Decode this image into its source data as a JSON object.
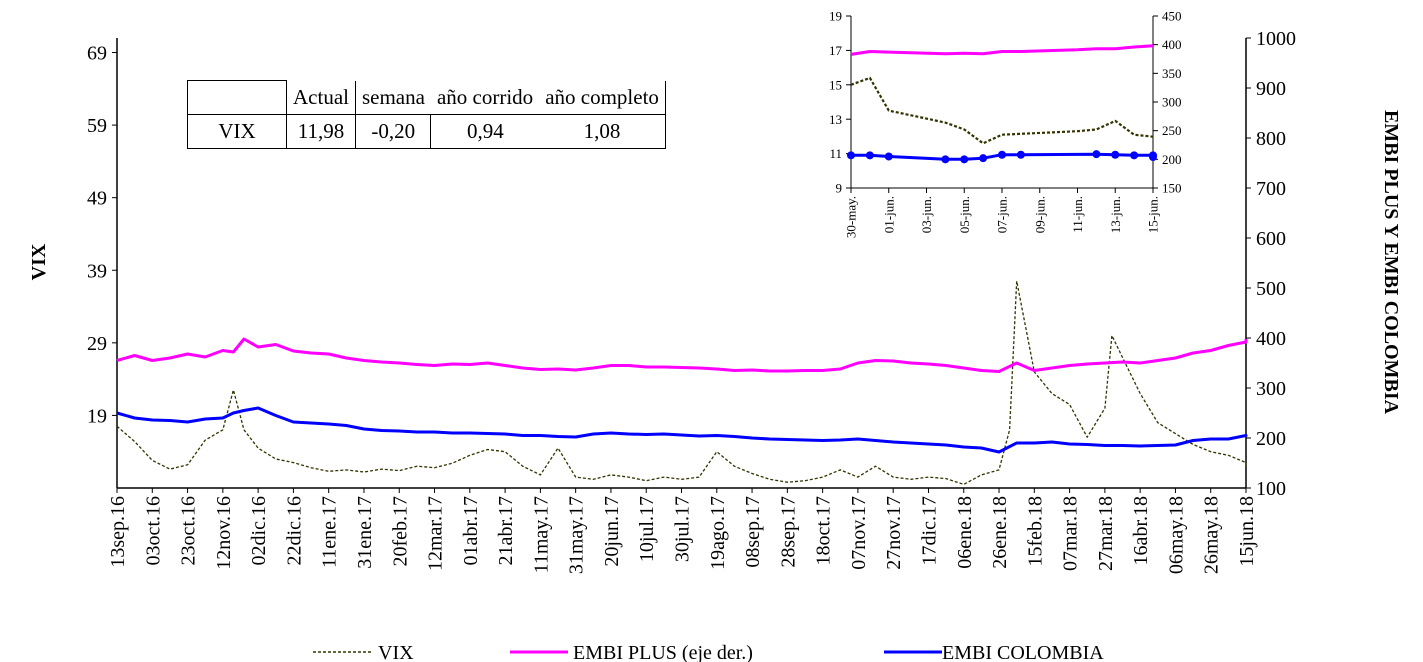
{
  "chart_data": [
    {
      "type": "line",
      "title": "",
      "ylabel_left": "VIX",
      "ylabel_right": "EMBI PLUS Y EMBI COLOMBIA",
      "y_left_ticks": [
        19,
        29,
        39,
        49,
        59,
        69
      ],
      "y_left_lim": [
        9,
        71
      ],
      "y_right_ticks": [
        100,
        200,
        300,
        400,
        500,
        600,
        700,
        800,
        900,
        1000
      ],
      "y_right_lim": [
        100,
        1000
      ],
      "x_tick_labels": [
        "13sep.16",
        "03oct.16",
        "23oct.16",
        "12nov.16",
        "02dic.16",
        "22dic.16",
        "11ene.17",
        "31ene.17",
        "20feb.17",
        "12mar.17",
        "01abr.17",
        "21abr.17",
        "11may.17",
        "31may.17",
        "20jun.17",
        "10jul.17",
        "30jul.17",
        "19ago.17",
        "08sep.17",
        "28sep.17",
        "18oct.17",
        "07nov.17",
        "27nov.17",
        "17dic.17",
        "06ene.18",
        "26ene.18",
        "15feb.18",
        "07mar.18",
        "27mar.18",
        "16abr.18",
        "06may.18",
        "26may.18",
        "15jun.18"
      ],
      "series": [
        {
          "name": "VIX",
          "axis": "left",
          "color": "#333300",
          "style": "dashed",
          "points": [
            [
              0,
              17.5
            ],
            [
              0.5,
              15.4
            ],
            [
              1,
              12.8
            ],
            [
              1.5,
              11.6
            ],
            [
              2,
              12.2
            ],
            [
              2.5,
              15.6
            ],
            [
              3,
              17.0
            ],
            [
              3.3,
              22.5
            ],
            [
              3.6,
              17.0
            ],
            [
              4,
              14.5
            ],
            [
              4.5,
              13.0
            ],
            [
              5,
              12.5
            ],
            [
              5.5,
              11.8
            ],
            [
              6,
              11.3
            ],
            [
              6.5,
              11.5
            ],
            [
              7,
              11.2
            ],
            [
              7.5,
              11.6
            ],
            [
              8,
              11.4
            ],
            [
              8.5,
              12.0
            ],
            [
              9,
              11.8
            ],
            [
              9.5,
              12.4
            ],
            [
              10,
              13.5
            ],
            [
              10.5,
              14.3
            ],
            [
              11,
              14.0
            ],
            [
              11.5,
              12.0
            ],
            [
              12,
              10.8
            ],
            [
              12.5,
              14.5
            ],
            [
              13,
              10.5
            ],
            [
              13.5,
              10.2
            ],
            [
              14,
              10.8
            ],
            [
              14.5,
              10.5
            ],
            [
              15,
              10.0
            ],
            [
              15.5,
              10.5
            ],
            [
              16,
              10.2
            ],
            [
              16.5,
              10.5
            ],
            [
              17,
              14.0
            ],
            [
              17.5,
              12.0
            ],
            [
              18,
              11.0
            ],
            [
              18.5,
              10.2
            ],
            [
              19,
              9.8
            ],
            [
              19.5,
              10.0
            ],
            [
              20,
              10.5
            ],
            [
              20.5,
              11.5
            ],
            [
              21,
              10.5
            ],
            [
              21.5,
              12.0
            ],
            [
              22,
              10.5
            ],
            [
              22.5,
              10.2
            ],
            [
              23,
              10.5
            ],
            [
              23.5,
              10.3
            ],
            [
              24,
              9.5
            ],
            [
              24.5,
              10.8
            ],
            [
              25,
              11.5
            ],
            [
              25.3,
              17.0
            ],
            [
              25.5,
              37.5
            ],
            [
              25.8,
              30.0
            ],
            [
              26,
              25.0
            ],
            [
              26.5,
              22.0
            ],
            [
              27,
              20.5
            ],
            [
              27.5,
              16.0
            ],
            [
              28,
              20.0
            ],
            [
              28.2,
              30.0
            ],
            [
              28.5,
              27.0
            ],
            [
              29,
              22.0
            ],
            [
              29.5,
              18.0
            ],
            [
              30,
              16.5
            ],
            [
              30.5,
              15.0
            ],
            [
              31,
              14.0
            ],
            [
              31.5,
              13.5
            ],
            [
              32,
              12.5
            ],
            [
              32.5,
              11.98
            ]
          ]
        },
        {
          "name": "EMBI PLUS (eje der.)",
          "axis": "right",
          "color": "#ff00ff",
          "style": "solid",
          "points": [
            [
              0,
              355
            ],
            [
              0.5,
              365
            ],
            [
              1,
              355
            ],
            [
              1.5,
              360
            ],
            [
              2,
              368
            ],
            [
              2.5,
              362
            ],
            [
              3,
              375
            ],
            [
              3.3,
              372
            ],
            [
              3.6,
              398
            ],
            [
              4,
              382
            ],
            [
              4.5,
              387
            ],
            [
              5,
              374
            ],
            [
              5.5,
              370
            ],
            [
              6,
              368
            ],
            [
              6.5,
              360
            ],
            [
              7,
              355
            ],
            [
              7.5,
              352
            ],
            [
              8,
              350
            ],
            [
              8.5,
              347
            ],
            [
              9,
              345
            ],
            [
              9.5,
              348
            ],
            [
              10,
              347
            ],
            [
              10.5,
              350
            ],
            [
              11,
              345
            ],
            [
              11.5,
              340
            ],
            [
              12,
              337
            ],
            [
              12.5,
              338
            ],
            [
              13,
              336
            ],
            [
              13.5,
              340
            ],
            [
              14,
              345
            ],
            [
              14.5,
              345
            ],
            [
              15,
              342
            ],
            [
              15.5,
              342
            ],
            [
              16,
              341
            ],
            [
              16.5,
              340
            ],
            [
              17,
              338
            ],
            [
              17.5,
              335
            ],
            [
              18,
              336
            ],
            [
              18.5,
              334
            ],
            [
              19,
              334
            ],
            [
              19.5,
              335
            ],
            [
              20,
              335
            ],
            [
              20.5,
              338
            ],
            [
              21,
              350
            ],
            [
              21.5,
              355
            ],
            [
              22,
              354
            ],
            [
              22.5,
              350
            ],
            [
              23,
              348
            ],
            [
              23.5,
              345
            ],
            [
              24,
              340
            ],
            [
              24.5,
              335
            ],
            [
              25,
              333
            ],
            [
              25.5,
              350
            ],
            [
              26,
              335
            ],
            [
              26.5,
              340
            ],
            [
              27,
              345
            ],
            [
              27.5,
              348
            ],
            [
              28,
              350
            ],
            [
              28.5,
              352
            ],
            [
              29,
              350
            ],
            [
              29.5,
              355
            ],
            [
              30,
              360
            ],
            [
              30.5,
              370
            ],
            [
              31,
              375
            ],
            [
              31.5,
              385
            ],
            [
              32,
              392
            ],
            [
              32.5,
              398
            ]
          ]
        },
        {
          "name": "EMBI COLOMBIA",
          "axis": "right",
          "color": "#0000ff",
          "style": "solid",
          "points": [
            [
              0,
              250
            ],
            [
              0.5,
              240
            ],
            [
              1,
              236
            ],
            [
              1.5,
              235
            ],
            [
              2,
              232
            ],
            [
              2.5,
              238
            ],
            [
              3,
              240
            ],
            [
              3.3,
              250
            ],
            [
              3.6,
              255
            ],
            [
              4,
              260
            ],
            [
              4.5,
              245
            ],
            [
              5,
              232
            ],
            [
              5.5,
              230
            ],
            [
              6,
              228
            ],
            [
              6.5,
              225
            ],
            [
              7,
              218
            ],
            [
              7.5,
              215
            ],
            [
              8,
              214
            ],
            [
              8.5,
              212
            ],
            [
              9,
              212
            ],
            [
              9.5,
              210
            ],
            [
              10,
              210
            ],
            [
              10.5,
              209
            ],
            [
              11,
              208
            ],
            [
              11.5,
              205
            ],
            [
              12,
              205
            ],
            [
              12.5,
              203
            ],
            [
              13,
              202
            ],
            [
              13.5,
              208
            ],
            [
              14,
              210
            ],
            [
              14.5,
              208
            ],
            [
              15,
              207
            ],
            [
              15.5,
              208
            ],
            [
              16,
              206
            ],
            [
              16.5,
              204
            ],
            [
              17,
              205
            ],
            [
              17.5,
              203
            ],
            [
              18,
              200
            ],
            [
              18.5,
              198
            ],
            [
              19,
              197
            ],
            [
              19.5,
              196
            ],
            [
              20,
              195
            ],
            [
              20.5,
              196
            ],
            [
              21,
              198
            ],
            [
              21.5,
              195
            ],
            [
              22,
              192
            ],
            [
              22.5,
              190
            ],
            [
              23,
              188
            ],
            [
              23.5,
              186
            ],
            [
              24,
              182
            ],
            [
              24.5,
              180
            ],
            [
              25,
              172
            ],
            [
              25.5,
              190
            ],
            [
              26,
              190
            ],
            [
              26.5,
              192
            ],
            [
              27,
              188
            ],
            [
              27.5,
              187
            ],
            [
              28,
              185
            ],
            [
              28.5,
              185
            ],
            [
              29,
              184
            ],
            [
              29.5,
              185
            ],
            [
              30,
              186
            ],
            [
              30.5,
              195
            ],
            [
              31,
              198
            ],
            [
              31.5,
              198
            ],
            [
              32,
              205
            ],
            [
              32.5,
              203
            ]
          ]
        }
      ],
      "legend": {
        "placement": "bottom",
        "entries": [
          "VIX",
          "EMBI PLUS (eje der.)",
          "EMBI COLOMBIA"
        ]
      }
    },
    {
      "type": "line",
      "title": "",
      "y_left_ticks": [
        9,
        11,
        13,
        15,
        17,
        19
      ],
      "y_left_lim": [
        9,
        19
      ],
      "y_right_ticks": [
        150,
        200,
        250,
        300,
        350,
        400,
        450
      ],
      "y_right_lim": [
        150,
        450
      ],
      "x_tick_labels": [
        "30-may.",
        "01-jun.",
        "03-jun.",
        "05-jun.",
        "07-jun.",
        "09-jun.",
        "11-jun.",
        "13-jun.",
        "15-jun."
      ],
      "x_range_days": [
        0,
        16
      ],
      "series": [
        {
          "name": "VIX",
          "axis": "left",
          "color": "#333300",
          "style": "dashed",
          "points": [
            [
              0,
              15.0
            ],
            [
              1,
              15.4
            ],
            [
              2,
              13.5
            ],
            [
              5,
              12.8
            ],
            [
              6,
              12.4
            ],
            [
              7,
              11.6
            ],
            [
              8,
              12.1
            ],
            [
              12,
              12.3
            ],
            [
              13,
              12.4
            ],
            [
              14,
              12.9
            ],
            [
              15,
              12.1
            ],
            [
              16,
              11.98
            ]
          ]
        },
        {
          "name": "EMBI PLUS",
          "axis": "right",
          "color": "#ff00ff",
          "style": "solid",
          "points": [
            [
              0,
              383
            ],
            [
              1,
              388
            ],
            [
              2,
              387
            ],
            [
              5,
              384
            ],
            [
              6,
              385
            ],
            [
              7,
              384
            ],
            [
              8,
              388
            ],
            [
              9,
              388
            ],
            [
              12,
              391
            ],
            [
              13,
              393
            ],
            [
              14,
              393
            ],
            [
              15,
              396
            ],
            [
              16,
              398
            ]
          ]
        },
        {
          "name": "EMBI COLOMBIA",
          "axis": "right",
          "color": "#0000ff",
          "style": "solid",
          "markers": true,
          "points": [
            [
              0,
              207
            ],
            [
              1,
              207
            ],
            [
              2,
              205
            ],
            [
              5,
              200
            ],
            [
              6,
              200
            ],
            [
              7,
              202
            ],
            [
              8,
              208
            ],
            [
              9,
              208
            ],
            [
              13,
              209
            ],
            [
              14,
              208
            ],
            [
              15,
              207
            ],
            [
              16,
              207
            ],
            [
              17,
              204
            ]
          ]
        }
      ]
    }
  ],
  "stats_table": {
    "headers": [
      "",
      "Actual",
      "semana",
      "año corrido",
      "año completo"
    ],
    "row": [
      "VIX",
      "11,98",
      "-0,20",
      "0,94",
      "1,08"
    ]
  }
}
